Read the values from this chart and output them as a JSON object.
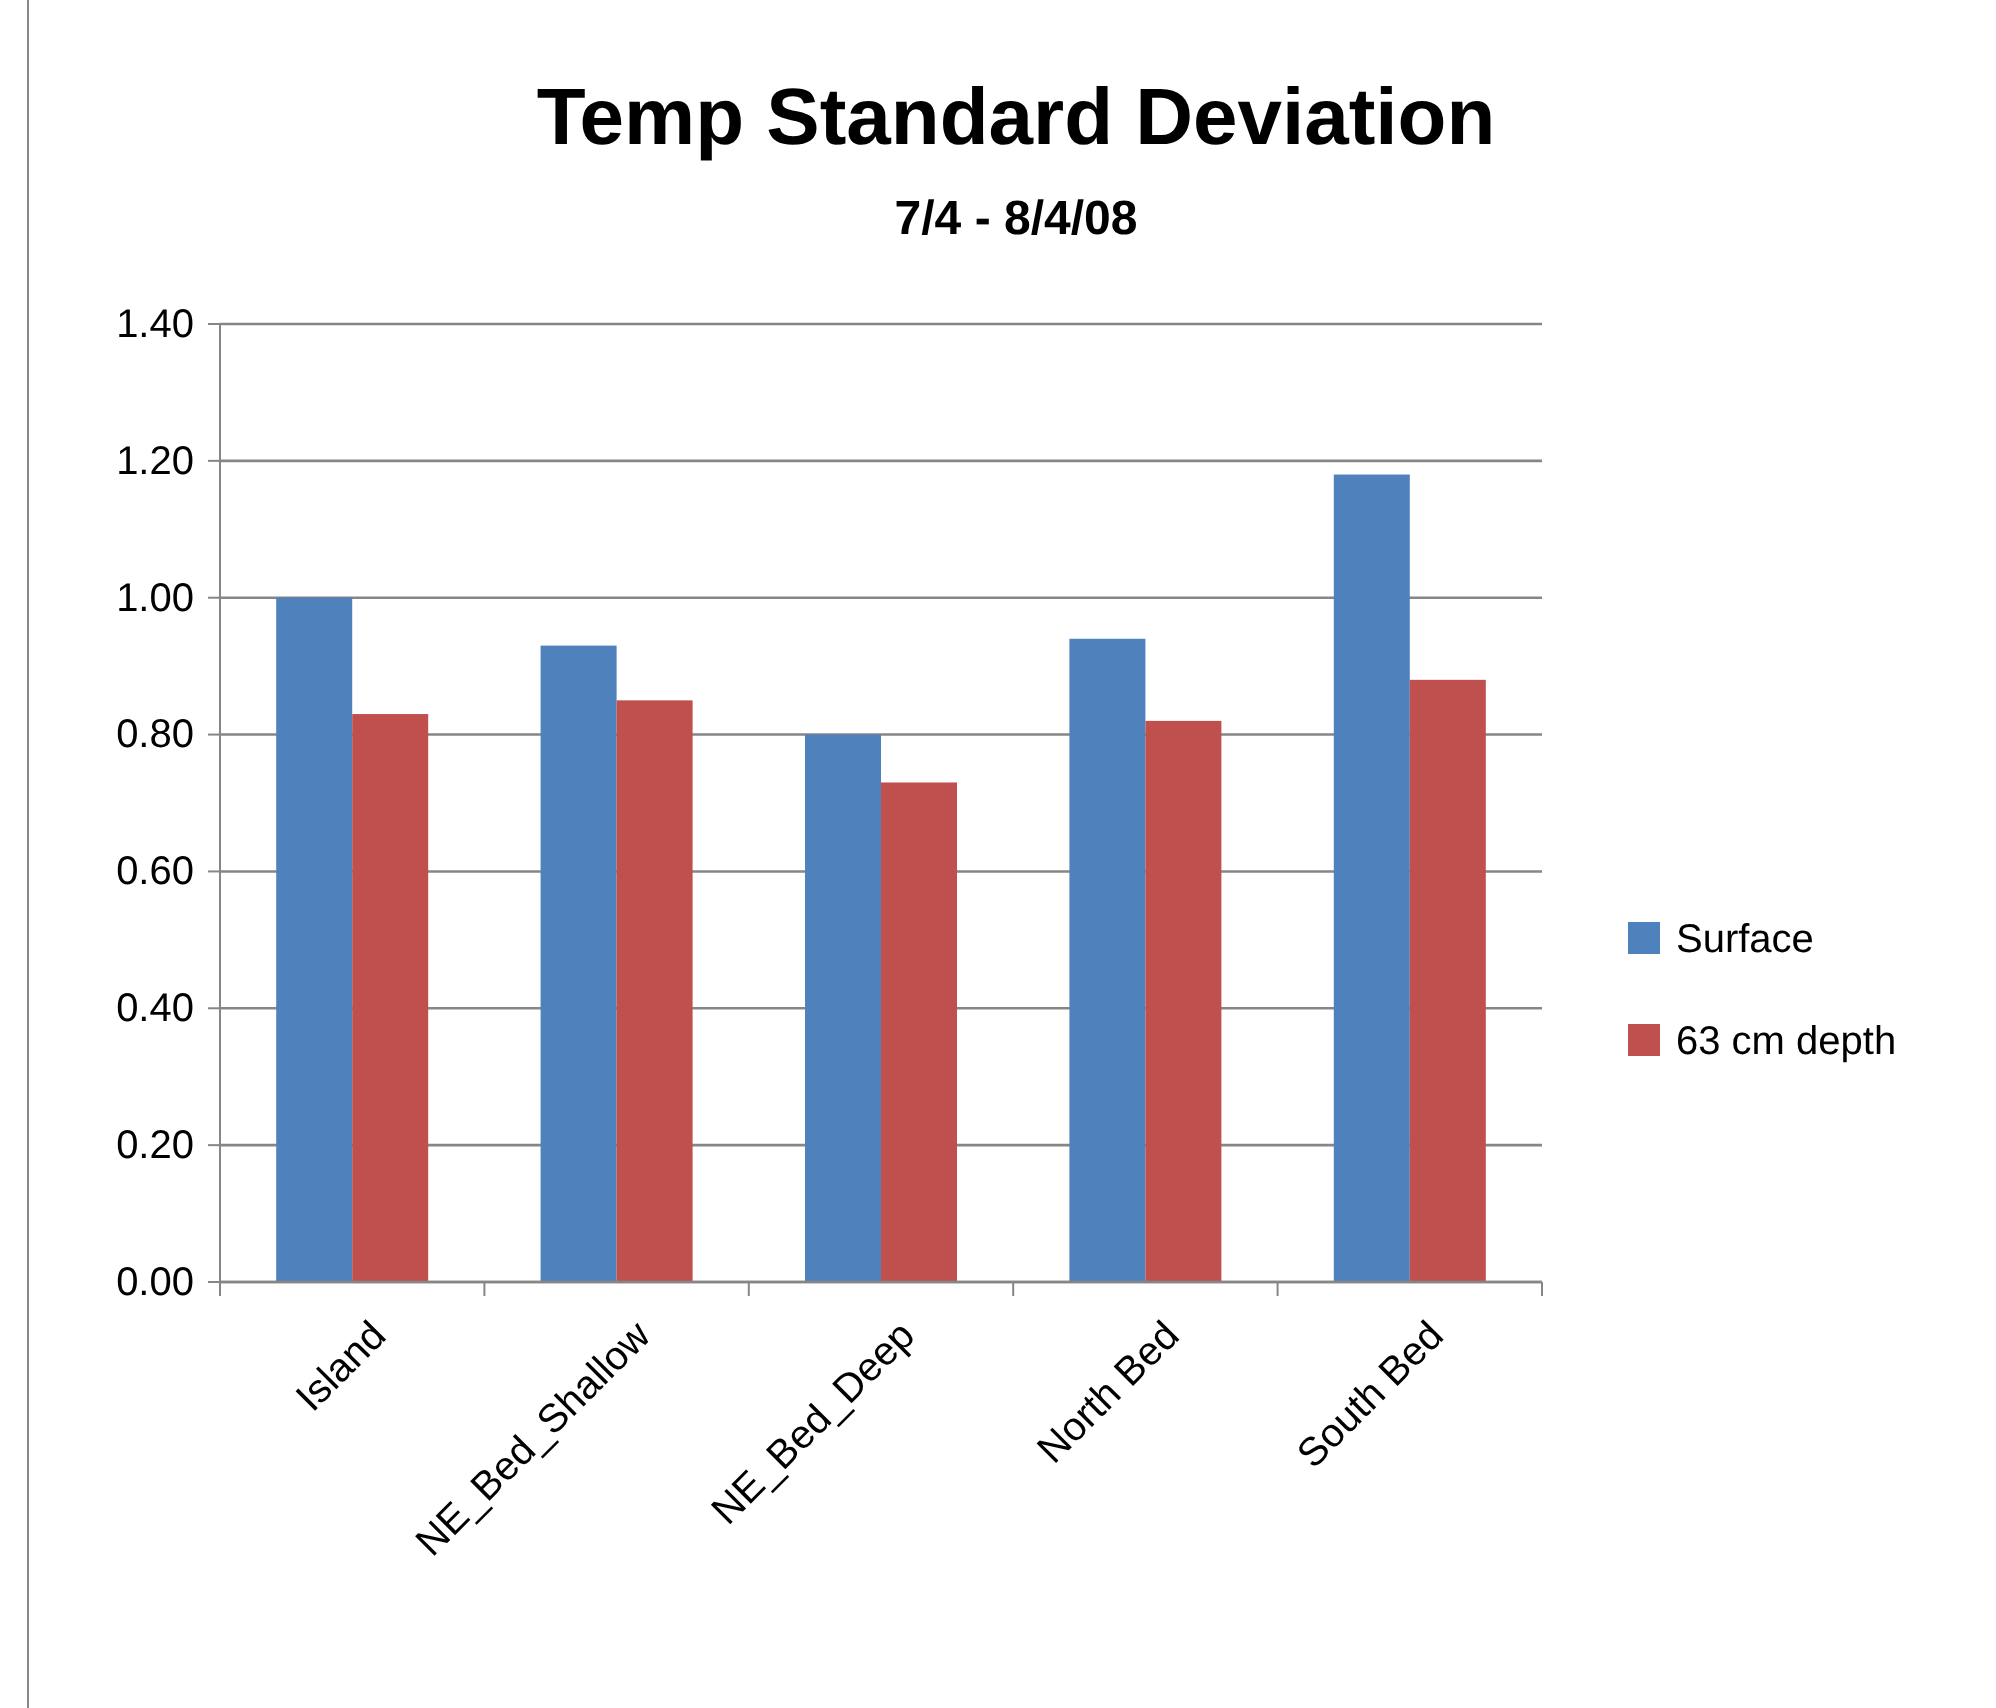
{
  "chart_data": {
    "type": "bar",
    "title": "Temp Standard Deviation",
    "subtitle": "7/4 - 8/4/08",
    "categories": [
      "Island",
      "NE_Bed_Shallow",
      "NE_Bed_Deep",
      "North Bed",
      "South Bed"
    ],
    "series": [
      {
        "name": "Surface",
        "color": "#4f81bd",
        "values": [
          1.0,
          0.93,
          0.8,
          0.94,
          1.18
        ]
      },
      {
        "name": "63 cm depth",
        "color": "#c0504d",
        "values": [
          0.83,
          0.85,
          0.73,
          0.82,
          0.88
        ]
      }
    ],
    "ylim": [
      0,
      1.4
    ],
    "yticks": [
      {
        "value": 0,
        "label": "0.00"
      },
      {
        "value": 0.2,
        "label": "0.20"
      },
      {
        "value": 0.4,
        "label": "0.40"
      },
      {
        "value": 0.6,
        "label": "0.60"
      },
      {
        "value": 0.8,
        "label": "0.80"
      },
      {
        "value": 1.0,
        "label": "1.00"
      },
      {
        "value": 1.2,
        "label": "1.20"
      },
      {
        "value": 1.4,
        "label": "1.40"
      }
    ],
    "grid": "y",
    "legend": "right"
  }
}
